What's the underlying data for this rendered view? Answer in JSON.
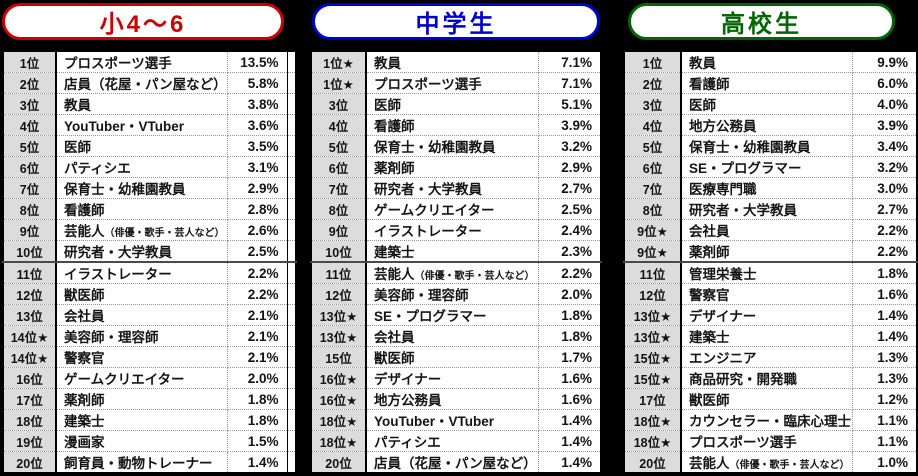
{
  "page": {
    "background": "#000000"
  },
  "chart_data": [
    {
      "type": "table",
      "title": "小4〜6",
      "accent": "#cc0000",
      "rows": [
        {
          "rank": "1位",
          "job": "プロスポーツ選手",
          "note": "",
          "pct": "13.5%"
        },
        {
          "rank": "2位",
          "job": "店員（花屋・パン屋など）",
          "note": "",
          "pct": "5.8%"
        },
        {
          "rank": "3位",
          "job": "教員",
          "note": "",
          "pct": "3.8%"
        },
        {
          "rank": "4位",
          "job": "YouTuber・VTuber",
          "note": "",
          "pct": "3.6%"
        },
        {
          "rank": "5位",
          "job": "医師",
          "note": "",
          "pct": "3.5%"
        },
        {
          "rank": "6位",
          "job": "パティシエ",
          "note": "",
          "pct": "3.1%"
        },
        {
          "rank": "7位",
          "job": "保育士・幼稚園教員",
          "note": "",
          "pct": "2.9%"
        },
        {
          "rank": "8位",
          "job": "看護師",
          "note": "",
          "pct": "2.8%"
        },
        {
          "rank": "9位",
          "job": "芸能人",
          "note": "（俳優・歌手・芸人など）",
          "pct": "2.6%"
        },
        {
          "rank": "10位",
          "job": "研究者・大学教員",
          "note": "",
          "pct": "2.5%"
        },
        {
          "rank": "11位",
          "job": "イラストレーター",
          "note": "",
          "pct": "2.2%"
        },
        {
          "rank": "12位",
          "job": "獣医師",
          "note": "",
          "pct": "2.2%"
        },
        {
          "rank": "13位",
          "job": "会社員",
          "note": "",
          "pct": "2.1%"
        },
        {
          "rank": "14位★",
          "job": "美容師・理容師",
          "note": "",
          "pct": "2.1%"
        },
        {
          "rank": "14位★",
          "job": "警察官",
          "note": "",
          "pct": "2.1%"
        },
        {
          "rank": "16位",
          "job": "ゲームクリエイター",
          "note": "",
          "pct": "2.0%"
        },
        {
          "rank": "17位",
          "job": "薬剤師",
          "note": "",
          "pct": "1.8%"
        },
        {
          "rank": "18位",
          "job": "建築士",
          "note": "",
          "pct": "1.8%"
        },
        {
          "rank": "19位",
          "job": "漫画家",
          "note": "",
          "pct": "1.5%"
        },
        {
          "rank": "20位",
          "job": "飼育員・動物トレーナー",
          "note": "",
          "pct": "1.4%"
        }
      ]
    },
    {
      "type": "table",
      "title": "中学生",
      "accent": "#0000cc",
      "rows": [
        {
          "rank": "1位★",
          "job": "教員",
          "note": "",
          "pct": "7.1%"
        },
        {
          "rank": "1位★",
          "job": "プロスポーツ選手",
          "note": "",
          "pct": "7.1%"
        },
        {
          "rank": "3位",
          "job": "医師",
          "note": "",
          "pct": "5.1%"
        },
        {
          "rank": "4位",
          "job": "看護師",
          "note": "",
          "pct": "3.9%"
        },
        {
          "rank": "5位",
          "job": "保育士・幼稚園教員",
          "note": "",
          "pct": "3.2%"
        },
        {
          "rank": "6位",
          "job": "薬剤師",
          "note": "",
          "pct": "2.9%"
        },
        {
          "rank": "7位",
          "job": "研究者・大学教員",
          "note": "",
          "pct": "2.7%"
        },
        {
          "rank": "8位",
          "job": "ゲームクリエイター",
          "note": "",
          "pct": "2.5%"
        },
        {
          "rank": "9位",
          "job": "イラストレーター",
          "note": "",
          "pct": "2.4%"
        },
        {
          "rank": "10位",
          "job": "建築士",
          "note": "",
          "pct": "2.3%"
        },
        {
          "rank": "11位",
          "job": "芸能人",
          "note": "（俳優・歌手・芸人など）",
          "pct": "2.2%"
        },
        {
          "rank": "12位",
          "job": "美容師・理容師",
          "note": "",
          "pct": "2.0%"
        },
        {
          "rank": "13位★",
          "job": "SE・プログラマー",
          "note": "",
          "pct": "1.8%"
        },
        {
          "rank": "13位★",
          "job": "会社員",
          "note": "",
          "pct": "1.8%"
        },
        {
          "rank": "15位",
          "job": "獣医師",
          "note": "",
          "pct": "1.7%"
        },
        {
          "rank": "16位★",
          "job": "デザイナー",
          "note": "",
          "pct": "1.6%"
        },
        {
          "rank": "16位★",
          "job": "地方公務員",
          "note": "",
          "pct": "1.6%"
        },
        {
          "rank": "18位★",
          "job": "YouTuber・VTuber",
          "note": "",
          "pct": "1.4%"
        },
        {
          "rank": "18位★",
          "job": "パティシエ",
          "note": "",
          "pct": "1.4%"
        },
        {
          "rank": "20位",
          "job": "店員（花屋・パン屋など）",
          "note": "",
          "pct": "1.4%"
        }
      ]
    },
    {
      "type": "table",
      "title": "高校生",
      "accent": "#006600",
      "rows": [
        {
          "rank": "1位",
          "job": "教員",
          "note": "",
          "pct": "9.9%"
        },
        {
          "rank": "2位",
          "job": "看護師",
          "note": "",
          "pct": "6.0%"
        },
        {
          "rank": "3位",
          "job": "医師",
          "note": "",
          "pct": "4.0%"
        },
        {
          "rank": "4位",
          "job": "地方公務員",
          "note": "",
          "pct": "3.9%"
        },
        {
          "rank": "5位",
          "job": "保育士・幼稚園教員",
          "note": "",
          "pct": "3.4%"
        },
        {
          "rank": "6位",
          "job": "SE・プログラマー",
          "note": "",
          "pct": "3.2%"
        },
        {
          "rank": "7位",
          "job": "医療専門職",
          "note": "",
          "pct": "3.0%"
        },
        {
          "rank": "8位",
          "job": "研究者・大学教員",
          "note": "",
          "pct": "2.7%"
        },
        {
          "rank": "9位★",
          "job": "会社員",
          "note": "",
          "pct": "2.2%"
        },
        {
          "rank": "9位★",
          "job": "薬剤師",
          "note": "",
          "pct": "2.2%"
        },
        {
          "rank": "11位",
          "job": "管理栄養士",
          "note": "",
          "pct": "1.8%"
        },
        {
          "rank": "12位",
          "job": "警察官",
          "note": "",
          "pct": "1.6%"
        },
        {
          "rank": "13位★",
          "job": "デザイナー",
          "note": "",
          "pct": "1.4%"
        },
        {
          "rank": "13位★",
          "job": "建築士",
          "note": "",
          "pct": "1.4%"
        },
        {
          "rank": "15位★",
          "job": "エンジニア",
          "note": "",
          "pct": "1.3%"
        },
        {
          "rank": "15位★",
          "job": "商品研究・開発職",
          "note": "",
          "pct": "1.3%"
        },
        {
          "rank": "17位",
          "job": "獣医師",
          "note": "",
          "pct": "1.2%"
        },
        {
          "rank": "18位★",
          "job": "カウンセラー・臨床心理士",
          "note": "",
          "pct": "1.1%"
        },
        {
          "rank": "18位★",
          "job": "プロスポーツ選手",
          "note": "",
          "pct": "1.1%"
        },
        {
          "rank": "20位",
          "job": "芸能人",
          "note": "（俳優・歌手・芸人など）",
          "pct": "1.0%"
        }
      ]
    }
  ]
}
